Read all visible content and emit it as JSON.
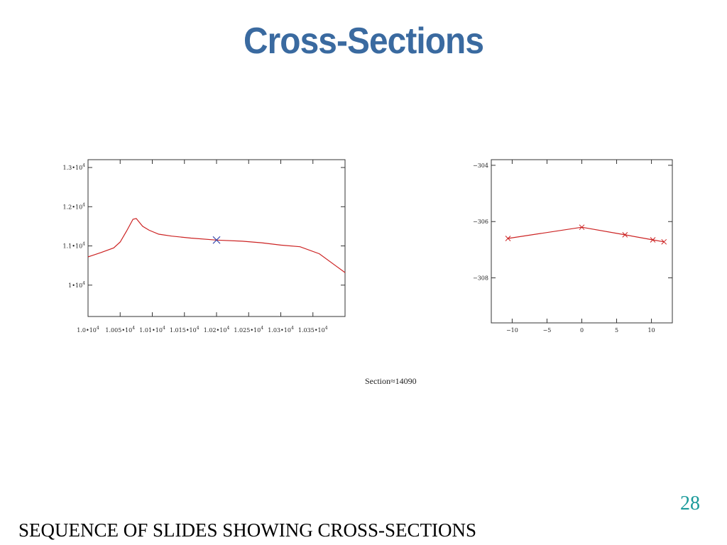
{
  "slide": {
    "title": "Cross-Sections",
    "section_label": "Section≈14090",
    "slide_number": "28",
    "caption": "SEQUENCE OF SLIDES SHOWING CROSS-SECTIONS"
  },
  "chart_data": [
    {
      "type": "line",
      "title": "",
      "xlabel": "",
      "ylabel": "",
      "grid": false,
      "line_color": "#cc2222",
      "marker_color": "#3344aa",
      "xlim": [
        10000,
        10400
      ],
      "ylim": [
        9200,
        13200
      ],
      "x_ticks": [
        {
          "value": 10000,
          "mant": "1.0•10",
          "exp": "4"
        },
        {
          "value": 10050,
          "mant": "1.005•10",
          "exp": "4"
        },
        {
          "value": 10100,
          "mant": "1.01•10",
          "exp": "4"
        },
        {
          "value": 10150,
          "mant": "1.015•10",
          "exp": "4"
        },
        {
          "value": 10200,
          "mant": "1.02•10",
          "exp": "4"
        },
        {
          "value": 10250,
          "mant": "1.025•10",
          "exp": "4"
        },
        {
          "value": 10300,
          "mant": "1.03•10",
          "exp": "4"
        },
        {
          "value": 10350,
          "mant": "1.035•10",
          "exp": "4"
        }
      ],
      "y_ticks": [
        {
          "value": 13000,
          "mant": "1.3•10",
          "exp": "4"
        },
        {
          "value": 12000,
          "mant": "1.2•10",
          "exp": "4"
        },
        {
          "value": 11000,
          "mant": "1.1•10",
          "exp": "4"
        },
        {
          "value": 10000,
          "mant": "1•10",
          "exp": "4"
        }
      ],
      "series": [
        {
          "x": [
            10000,
            10020,
            10040,
            10050,
            10060,
            10070,
            10075,
            10085,
            10095,
            10110,
            10130,
            10160,
            10200,
            10240,
            10270,
            10300,
            10330,
            10360,
            10385,
            10400
          ],
          "y": [
            10720,
            10830,
            10950,
            11100,
            11380,
            11680,
            11700,
            11500,
            11400,
            11300,
            11250,
            11200,
            11150,
            11120,
            11080,
            11020,
            10980,
            10800,
            10500,
            10320
          ]
        }
      ],
      "marker": {
        "x": 10200,
        "y": 11150
      }
    },
    {
      "type": "line",
      "title": "",
      "xlabel": "",
      "ylabel": "",
      "grid": false,
      "line_color": "#cc2222",
      "xlim": [
        -13,
        13
      ],
      "ylim": [
        -309.6,
        -303.8
      ],
      "x_ticks": [
        {
          "value": -10,
          "label": "−10"
        },
        {
          "value": -5,
          "label": "−5"
        },
        {
          "value": 0,
          "label": "0"
        },
        {
          "value": 5,
          "label": "5"
        },
        {
          "value": 10,
          "label": "10"
        }
      ],
      "y_ticks": [
        {
          "value": -304,
          "label": "−304"
        },
        {
          "value": -306,
          "label": "−306"
        },
        {
          "value": -308,
          "label": "−308"
        }
      ],
      "series": [
        {
          "x": [
            -10.6,
            0,
            6.2,
            10.2,
            11.8
          ],
          "y": [
            -306.6,
            -306.2,
            -306.47,
            -306.65,
            -306.72
          ]
        }
      ]
    }
  ]
}
